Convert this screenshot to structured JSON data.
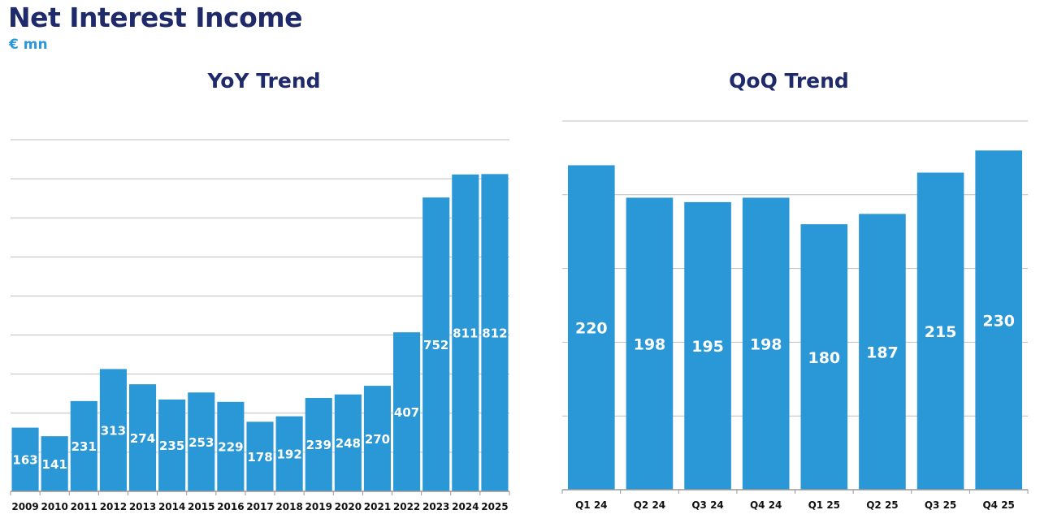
{
  "header": {
    "title": "Net Interest Income",
    "unit": "€ mn"
  },
  "colors": {
    "bar": "#2a97d6",
    "title": "#1f2a6b",
    "grid": "#bfbfbf"
  },
  "chart_data": [
    {
      "type": "bar",
      "title": "YoY Trend",
      "categories": [
        "2009",
        "2010",
        "2011",
        "2012",
        "2013",
        "2014",
        "2015",
        "2016",
        "2017",
        "2018",
        "2019",
        "2020",
        "2021",
        "2022",
        "2023",
        "2024",
        "2025"
      ],
      "values": [
        163,
        141,
        231,
        313,
        274,
        235,
        253,
        229,
        178,
        192,
        239,
        248,
        270,
        407,
        752,
        811,
        812
      ],
      "ylim": [
        0,
        900
      ],
      "grid": true,
      "data_labels": true
    },
    {
      "type": "bar",
      "title": "QoQ Trend",
      "categories": [
        "Q1 24",
        "Q2 24",
        "Q3 24",
        "Q4 24",
        "Q1 25",
        "Q2 25",
        "Q3 25",
        "Q4 25"
      ],
      "values": [
        220,
        198,
        195,
        198,
        180,
        187,
        215,
        230
      ],
      "ylim": [
        0,
        250
      ],
      "grid": true,
      "data_labels": true
    }
  ]
}
